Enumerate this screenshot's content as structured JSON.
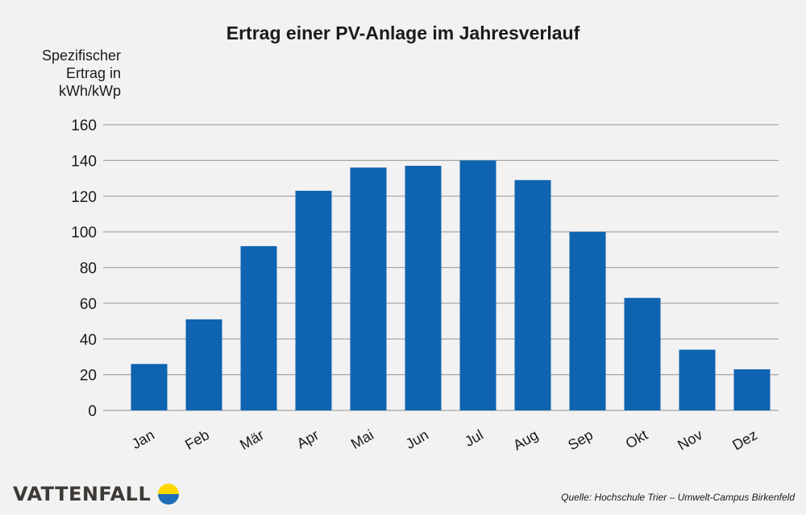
{
  "chart_data": {
    "type": "bar",
    "title": "Ertrag einer PV-Anlage im Jahresverlauf",
    "ylabel": "Spezifischer\nErtrag in\nkWh/kWp",
    "xlabel": "",
    "categories": [
      "Jan",
      "Feb",
      "Mär",
      "Apr",
      "Mai",
      "Jun",
      "Jul",
      "Aug",
      "Sep",
      "Okt",
      "Nov",
      "Dez"
    ],
    "values": [
      26,
      51,
      92,
      123,
      136,
      137,
      140,
      129,
      100,
      63,
      34,
      23
    ],
    "ylim": [
      0,
      160
    ],
    "yticks": [
      0,
      20,
      40,
      60,
      80,
      100,
      120,
      140,
      160
    ],
    "grid": true,
    "bar_color": "#0e64b0"
  },
  "footer": {
    "logo_text": "VATTENFALL",
    "source": "Quelle: Hochschule Trier – Umwelt-Campus Birkenfeld"
  },
  "colors": {
    "logo_yellow": "#ffd700",
    "logo_blue": "#1f6db8",
    "grid": "#a6a6a6"
  }
}
